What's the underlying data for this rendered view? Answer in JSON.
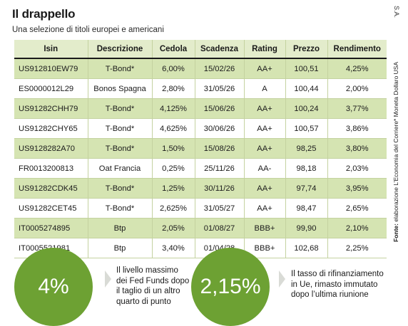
{
  "header": {
    "title": "Il drappello",
    "subtitle": "Una selezione di titoli europei e americani",
    "byline": "S.A."
  },
  "table": {
    "columns": [
      "Isin",
      "Descrizione",
      "Cedola",
      "Scadenza",
      "Rating",
      "Prezzo",
      "Rendimento"
    ],
    "rows": [
      [
        "US912810EW79",
        "T-Bond*",
        "6,00%",
        "15/02/26",
        "AA+",
        "100,51",
        "4,25%"
      ],
      [
        "ES0000012L29",
        "Bonos Spagna",
        "2,80%",
        "31/05/26",
        "A",
        "100,44",
        "2,00%"
      ],
      [
        "US91282CHH79",
        "T-Bond*",
        "4,125%",
        "15/06/26",
        "AA+",
        "100,24",
        "3,77%"
      ],
      [
        "US91282CHY65",
        "T-Bond*",
        "4,625%",
        "30/06/26",
        "AA+",
        "100,57",
        "3,86%"
      ],
      [
        "US9128282A70",
        "T-Bond*",
        "1,50%",
        "15/08/26",
        "AA+",
        "98,25",
        "3,80%"
      ],
      [
        "FR0013200813",
        "Oat Francia",
        "0,25%",
        "25/11/26",
        "AA-",
        "98,18",
        "2,03%"
      ],
      [
        "US91282CDK45",
        "T-Bond*",
        "1,25%",
        "30/11/26",
        "AA+",
        "97,74",
        "3,95%"
      ],
      [
        "US91282CET45",
        "T-Bond*",
        "2,625%",
        "31/05/27",
        "AA+",
        "98,47",
        "2,65%"
      ],
      [
        "IT0005274895",
        "Btp",
        "2,05%",
        "01/08/27",
        "BBB+",
        "99,90",
        "2,10%"
      ],
      [
        "IT0005521981",
        "Btp",
        "3,40%",
        "01/04/28",
        "BBB+",
        "102,68",
        "2,25%"
      ]
    ]
  },
  "sidebar": {
    "fonte_label": "Fonte:",
    "fonte_text": " elaborazione L’Economia del Corriere",
    "footnote": "* Moneta Dollaro USA"
  },
  "highlights": [
    {
      "value": "4%",
      "lines": [
        "Il livello massimo",
        "dei Fed Funds dopo",
        "il taglio di un altro",
        "quarto di punto"
      ]
    },
    {
      "value": "2,15%",
      "lines": [
        "Il tasso di rifinanziamento",
        "in Ue, rimasto immutato",
        "dopo l’ultima riunione"
      ]
    }
  ],
  "colors": {
    "circle_green": "#6da133",
    "row_green": "#d5e4b2",
    "header_green": "#e3eccb"
  }
}
